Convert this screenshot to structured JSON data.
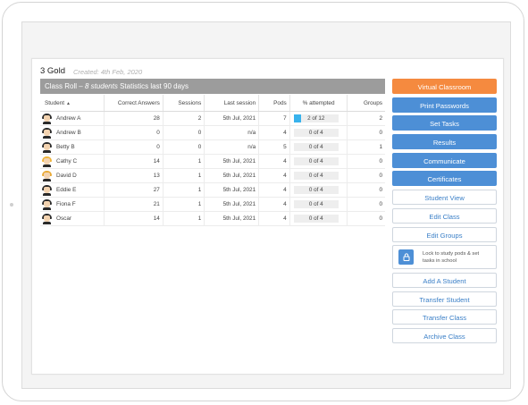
{
  "class": {
    "title": "3 Gold",
    "created": "Created: 4th Feb, 2020"
  },
  "roll_bar": {
    "label": "Class Roll",
    "separator": "–",
    "count": "8 students",
    "stats": "Statistics last 90 days"
  },
  "table": {
    "headers": {
      "student": "Student",
      "sort_icon": "sort-up-icon",
      "correct": "Correct Answers",
      "sessions": "Sessions",
      "last_session": "Last session",
      "pods": "Pods",
      "attempted": "% attempted",
      "groups": "Groups"
    },
    "rows": [
      {
        "name": "Andrew A",
        "avatar": "boy-dark-hair",
        "correct": "28",
        "sessions": "2",
        "last": "5th Jul, 2021",
        "pods": "7",
        "attempted": "2 of 12",
        "attempted_fraction": 0.167,
        "groups": "2"
      },
      {
        "name": "Andrew B",
        "avatar": "boy-dark-hair",
        "correct": "0",
        "sessions": "0",
        "last": "n/a",
        "pods": "4",
        "attempted": "0 of 4",
        "attempted_fraction": 0,
        "groups": "0"
      },
      {
        "name": "Betty B",
        "avatar": "boy-dark-hair",
        "correct": "0",
        "sessions": "0",
        "last": "n/a",
        "pods": "5",
        "attempted": "0 of 4",
        "attempted_fraction": 0,
        "groups": "1"
      },
      {
        "name": "Cathy C",
        "avatar": "girl-blonde-hair",
        "correct": "14",
        "sessions": "1",
        "last": "5th Jul, 2021",
        "pods": "4",
        "attempted": "0 of 4",
        "attempted_fraction": 0,
        "groups": "0"
      },
      {
        "name": "David D",
        "avatar": "boy-blonde-hair",
        "correct": "13",
        "sessions": "1",
        "last": "5th Jul, 2021",
        "pods": "4",
        "attempted": "0 of 4",
        "attempted_fraction": 0,
        "groups": "0"
      },
      {
        "name": "Eddie E",
        "avatar": "boy-dark-hair",
        "correct": "27",
        "sessions": "1",
        "last": "5th Jul, 2021",
        "pods": "4",
        "attempted": "0 of 4",
        "attempted_fraction": 0,
        "groups": "0"
      },
      {
        "name": "Fiona F",
        "avatar": "boy-dark-hair",
        "correct": "21",
        "sessions": "1",
        "last": "5th Jul, 2021",
        "pods": "4",
        "attempted": "0 of 4",
        "attempted_fraction": 0,
        "groups": "0"
      },
      {
        "name": "Oscar",
        "avatar": "boy-dark-hair",
        "correct": "14",
        "sessions": "1",
        "last": "5th Jul, 2021",
        "pods": "4",
        "attempted": "0 of 4",
        "attempted_fraction": 0,
        "groups": "0"
      }
    ]
  },
  "actions": {
    "virtual_classroom": "Virtual Classroom",
    "print_passwords": "Print Passwords",
    "set_tasks": "Set Tasks",
    "results": "Results",
    "communicate": "Communicate",
    "certificates": "Certificates",
    "student_view": "Student View",
    "edit_class": "Edit Class",
    "edit_groups": "Edit Groups",
    "lock_icon": "lock-icon",
    "lock_text": "Lock to study pods & set tasks in school",
    "add_student": "Add A Student",
    "transfer_student": "Transfer Student",
    "transfer_class": "Transfer Class",
    "archive_class": "Archive Class"
  },
  "colors": {
    "orange": "#f58a3f",
    "blue": "#4d8fd6",
    "progress": "#38b2ec",
    "roll_bar": "#9c9c9c"
  }
}
